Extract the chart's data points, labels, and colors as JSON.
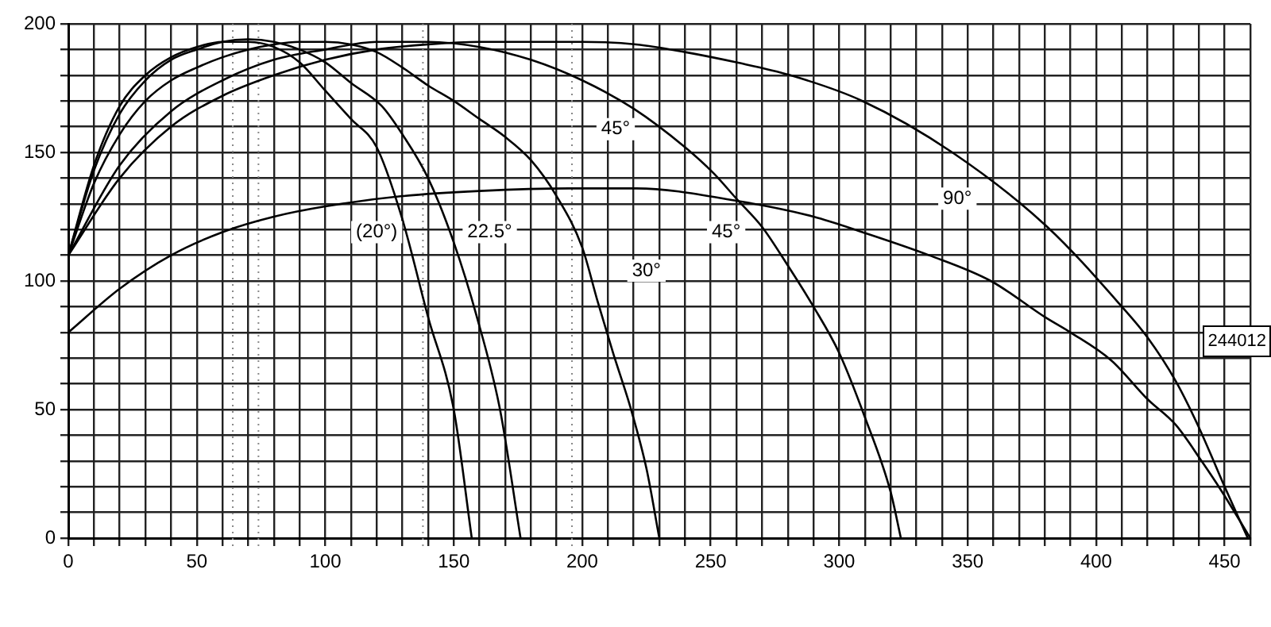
{
  "chart_data": {
    "type": "line",
    "xlim": [
      0,
      460
    ],
    "ylim": [
      0,
      200
    ],
    "xticks": [
      0,
      {
        "value": 10,
        "label": null
      },
      {
        "value": 20,
        "label": null
      },
      {
        "value": 30,
        "label": null
      },
      {
        "value": 40,
        "label": null
      },
      50,
      {
        "value": 60,
        "label": null
      },
      {
        "value": 70,
        "label": null
      },
      {
        "value": 80,
        "label": null
      },
      {
        "value": 90,
        "label": null
      },
      100,
      {
        "value": 110,
        "label": null
      },
      {
        "value": 120,
        "label": null
      },
      {
        "value": 130,
        "label": null
      },
      {
        "value": 140,
        "label": null
      },
      150,
      {
        "value": 160,
        "label": null
      },
      {
        "value": 170,
        "label": null
      },
      {
        "value": 180,
        "label": null
      },
      {
        "value": 190,
        "label": null
      },
      200,
      {
        "value": 210,
        "label": null
      },
      {
        "value": 220,
        "label": null
      },
      {
        "value": 230,
        "label": null
      },
      {
        "value": 240,
        "label": null
      },
      250,
      {
        "value": 260,
        "label": null
      },
      {
        "value": 270,
        "label": null
      },
      {
        "value": 280,
        "label": null
      },
      {
        "value": 290,
        "label": null
      },
      300,
      {
        "value": 310,
        "label": null
      },
      {
        "value": 320,
        "label": null
      },
      {
        "value": 330,
        "label": null
      },
      {
        "value": 340,
        "label": null
      },
      350,
      {
        "value": 360,
        "label": null
      },
      {
        "value": 370,
        "label": null
      },
      {
        "value": 380,
        "label": null
      },
      {
        "value": 390,
        "label": null
      },
      400,
      {
        "value": 410,
        "label": null
      },
      {
        "value": 420,
        "label": null
      },
      {
        "value": 430,
        "label": null
      },
      {
        "value": 440,
        "label": null
      },
      450,
      {
        "value": 460,
        "label": null
      }
    ],
    "yticks": [
      0,
      {
        "value": 10,
        "label": null
      },
      {
        "value": 20,
        "label": null
      },
      {
        "value": 30,
        "label": null
      },
      {
        "value": 40,
        "label": null
      },
      50,
      {
        "value": 60,
        "label": null
      },
      {
        "value": 70,
        "label": null
      },
      {
        "value": 80,
        "label": null
      },
      {
        "value": 90,
        "label": null
      },
      100,
      {
        "value": 110,
        "label": null
      },
      {
        "value": 120,
        "label": null
      },
      {
        "value": 130,
        "label": null
      },
      {
        "value": 140,
        "label": null
      },
      150,
      {
        "value": 160,
        "label": null
      },
      {
        "value": 170,
        "label": null
      },
      {
        "value": 180,
        "label": null
      },
      {
        "value": 190,
        "label": null
      },
      200
    ],
    "grid": true,
    "legend": false,
    "marker": "none",
    "line_style": "solid",
    "series": [
      {
        "color": "#000000",
        "x": [
          0,
          10,
          20,
          30,
          40,
          50,
          60,
          70,
          80,
          90,
          100,
          110,
          120,
          130,
          140,
          150,
          157
        ],
        "values": [
          110,
          145,
          168,
          180,
          187,
          191,
          193,
          193,
          191,
          185,
          174,
          163,
          152,
          124,
          86,
          50,
          0
        ]
      },
      {
        "color": "#000000",
        "x": [
          0,
          10,
          20,
          30,
          40,
          50,
          60,
          70,
          80,
          90,
          100,
          110,
          122,
          130,
          140,
          150,
          159,
          168,
          176
        ],
        "values": [
          110,
          143,
          165,
          178,
          186,
          190,
          193,
          194,
          193,
          190,
          185,
          177,
          168,
          157,
          140,
          115,
          86,
          50,
          0
        ]
      },
      {
        "color": "#000000",
        "x": [
          0,
          10,
          20,
          30,
          40,
          50,
          60,
          70,
          80,
          90,
          100,
          110,
          120,
          130,
          140,
          150,
          160,
          170,
          180,
          190,
          200,
          206,
          212,
          219,
          225,
          230
        ],
        "values": [
          110,
          138,
          157,
          170,
          178,
          183,
          187,
          190,
          192,
          193,
          193,
          192,
          189,
          183,
          176,
          170,
          163,
          156,
          147,
          133,
          113,
          92,
          72,
          50,
          27,
          0
        ]
      },
      {
        "color": "#000000",
        "x": [
          0,
          20,
          40,
          60,
          80,
          100,
          120,
          140,
          160,
          180,
          200,
          220,
          240,
          251,
          260,
          270,
          280,
          290,
          300,
          310,
          320,
          324
        ],
        "values": [
          110,
          145,
          166,
          178,
          186,
          190,
          193,
          193,
          191,
          186,
          178,
          167,
          152,
          142,
          132,
          121,
          106,
          90,
          72,
          47,
          18,
          0
        ]
      },
      {
        "color": "#000000",
        "x": [
          0,
          20,
          40,
          60,
          80,
          100,
          120,
          140,
          160,
          180,
          200,
          221,
          240,
          260,
          281,
          309,
          344,
          381,
          410,
          420,
          431,
          440,
          450,
          459
        ],
        "values": [
          110,
          140,
          160,
          172,
          180,
          186,
          190,
          192,
          193,
          193,
          193,
          192,
          189,
          185,
          180,
          170,
          150,
          121,
          90,
          78,
          61,
          43,
          20,
          0
        ]
      },
      {
        "color": "#000000",
        "x": [
          0,
          20,
          40,
          60,
          80,
          100,
          130,
          160,
          195,
          221,
          261,
          290,
          309,
          335,
          359,
          380,
          390,
          406,
          420,
          431,
          441,
          449,
          460
        ],
        "values": [
          80,
          97,
          110,
          119,
          125,
          129,
          133,
          135,
          136,
          136,
          131,
          125,
          119,
          110,
          100,
          86,
          80,
          69,
          54,
          44,
          30,
          18,
          0
        ]
      }
    ],
    "ref_lines": [
      {
        "axis": "x",
        "value": 64,
        "color": "#888888",
        "line_style": "dotted"
      },
      {
        "axis": "x",
        "value": 74,
        "color": "#888888",
        "line_style": "dotted"
      },
      {
        "axis": "x",
        "value": 138,
        "color": "#888888",
        "line_style": "dotted"
      },
      {
        "axis": "x",
        "value": 196,
        "color": "#888888",
        "line_style": "dotted"
      }
    ],
    "annotations": [
      {
        "text": "(20°)",
        "x": 120,
        "y": 119
      },
      {
        "text": "22.5°",
        "x": 164,
        "y": 119
      },
      {
        "text": "30°",
        "x": 225,
        "y": 104
      },
      {
        "text": "45°",
        "x": 213,
        "y": 159
      },
      {
        "text": "45°",
        "x": 256,
        "y": 119
      },
      {
        "text": "90°",
        "x": 346,
        "y": 132
      },
      "244012"
    ]
  }
}
